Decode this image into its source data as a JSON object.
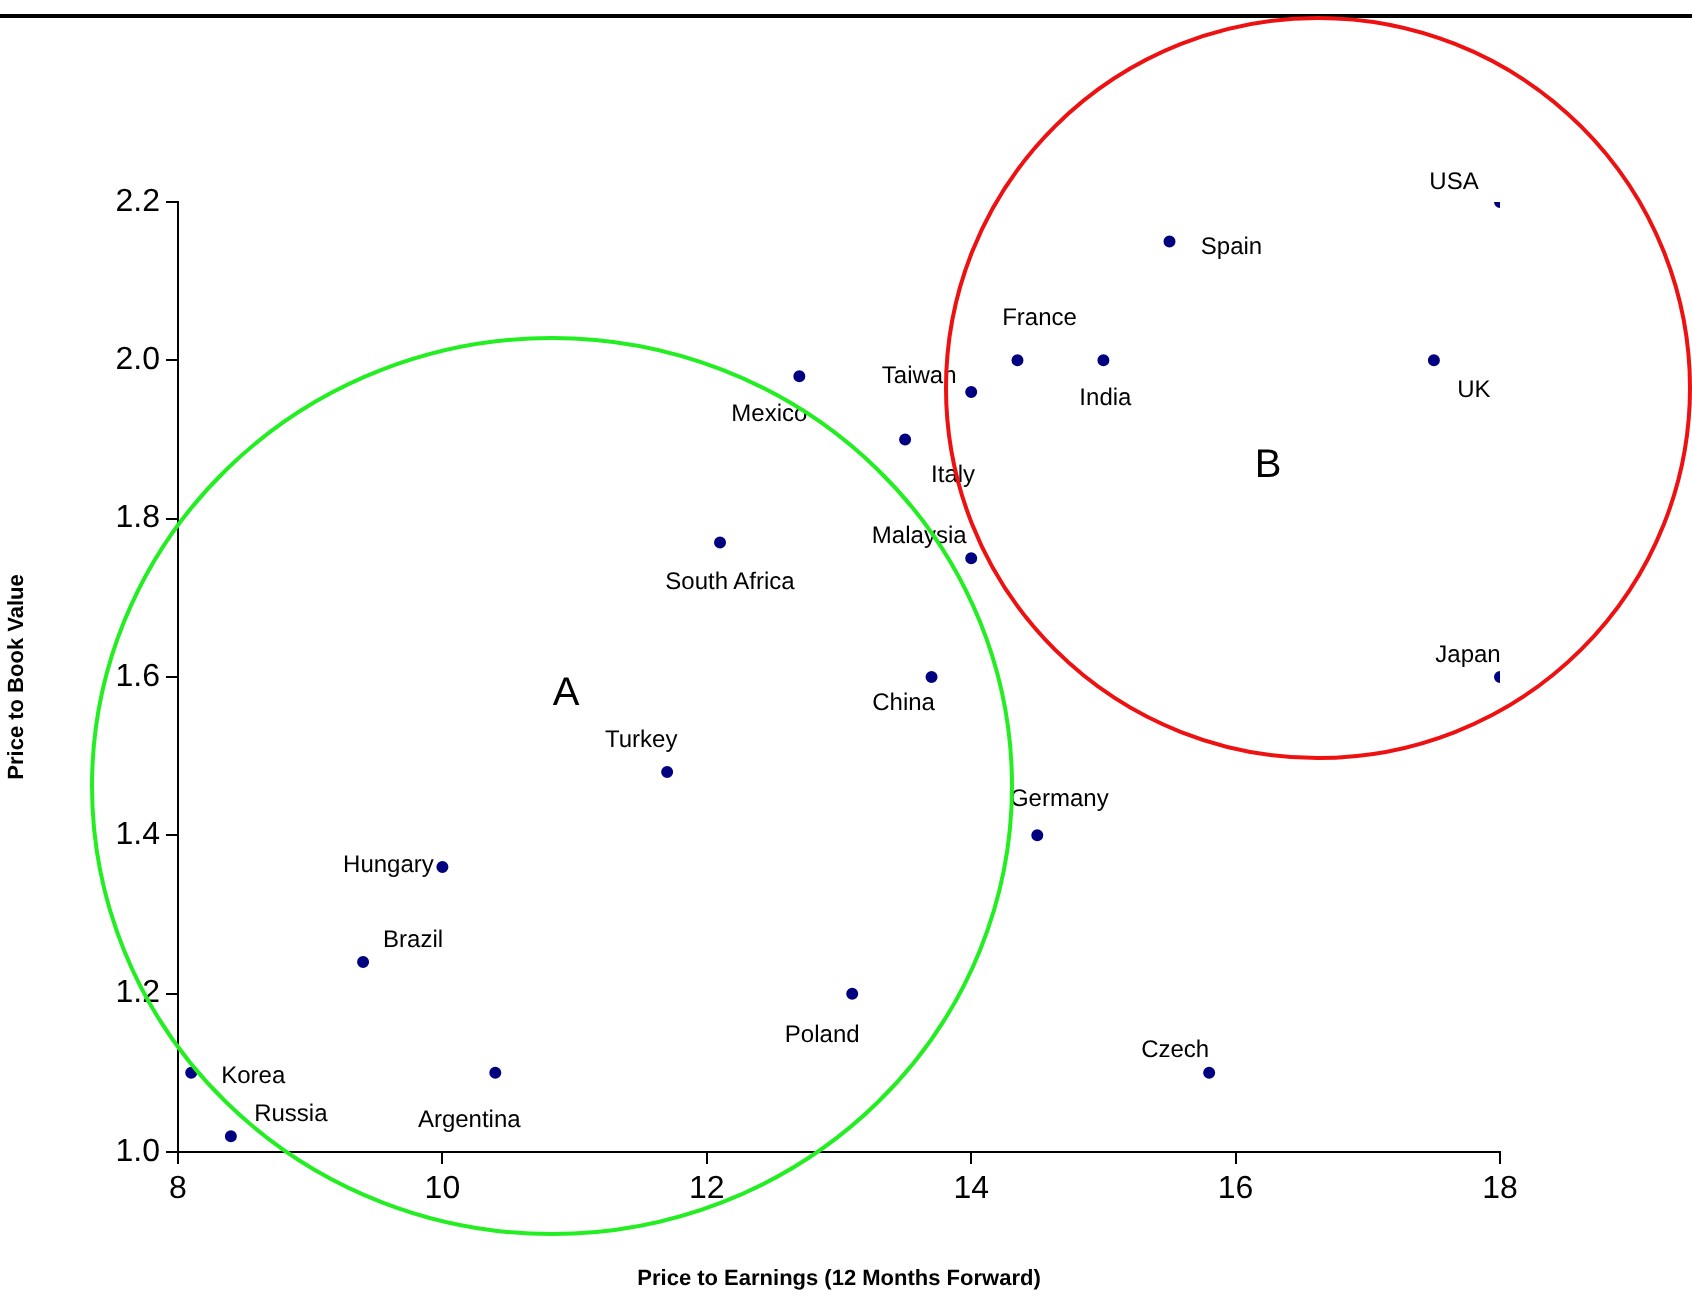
{
  "chart_data": {
    "type": "scatter",
    "xlabel": "Price to Earnings (12 Months Forward)",
    "ylabel": "Price to Book Value",
    "x": [
      18,
      15.5,
      14.35,
      15,
      17.5,
      14,
      12.7,
      13.5,
      14,
      12.1,
      13.7,
      18,
      11.7,
      14.5,
      10,
      9.4,
      13.1,
      8.1,
      10.4,
      15.8,
      8.4
    ],
    "values": [
      2.2,
      2.15,
      2.0,
      2.0,
      2.0,
      1.96,
      1.98,
      1.9,
      1.75,
      1.77,
      1.6,
      1.6,
      1.48,
      1.4,
      1.36,
      1.24,
      1.2,
      1.1,
      1.1,
      1.1,
      1.02
    ],
    "color": "#000080",
    "marker": "circle",
    "legend": false,
    "grid": false,
    "xlim": [
      8,
      18
    ],
    "xticks": [
      8,
      10,
      12,
      14,
      16,
      18
    ],
    "ylim": [
      1.0,
      2.2
    ],
    "yticks": [
      {
        "value": 1.0,
        "label": "1.0"
      },
      {
        "value": 1.2,
        "label": "1.2"
      },
      {
        "value": 1.4,
        "label": "1.4"
      },
      {
        "value": 1.6,
        "label": "1.6"
      },
      {
        "value": 1.8,
        "label": "1.8"
      },
      {
        "value": 2.0,
        "label": "2.0"
      },
      {
        "value": 2.2,
        "label": "2.2"
      }
    ],
    "annotations": [
      {
        "text": "USA",
        "x": 18,
        "y": 2.2
      },
      {
        "text": "Spain",
        "x": 15.5,
        "y": 2.15
      },
      {
        "text": "France",
        "x": 14.35,
        "y": 2.0
      },
      {
        "text": "India",
        "x": 15,
        "y": 2.0
      },
      {
        "text": "UK",
        "x": 17.5,
        "y": 2.0
      },
      {
        "text": "Taiwan",
        "x": 14,
        "y": 1.96
      },
      {
        "text": "Mexico",
        "x": 12.7,
        "y": 1.98
      },
      {
        "text": "Italy",
        "x": 13.5,
        "y": 1.9
      },
      {
        "text": "Malaysia",
        "x": 14,
        "y": 1.75
      },
      {
        "text": "South Africa",
        "x": 12.1,
        "y": 1.77
      },
      {
        "text": "China",
        "x": 13.7,
        "y": 1.6
      },
      {
        "text": "Japan",
        "x": 18,
        "y": 1.6
      },
      {
        "text": "Turkey",
        "x": 11.7,
        "y": 1.48
      },
      {
        "text": "Germany",
        "x": 14.5,
        "y": 1.4
      },
      {
        "text": "Hungary",
        "x": 10,
        "y": 1.36
      },
      {
        "text": "Brazil",
        "x": 9.4,
        "y": 1.24
      },
      {
        "text": "Poland",
        "x": 13.1,
        "y": 1.2
      },
      {
        "text": "Korea",
        "x": 8.1,
        "y": 1.1
      },
      {
        "text": "Argentina",
        "x": 10.4,
        "y": 1.1
      },
      {
        "text": "Czech",
        "x": 15.8,
        "y": 1.1
      },
      {
        "text": "Russia",
        "x": 8.4,
        "y": 1.02
      },
      "A",
      "B"
    ]
  }
}
